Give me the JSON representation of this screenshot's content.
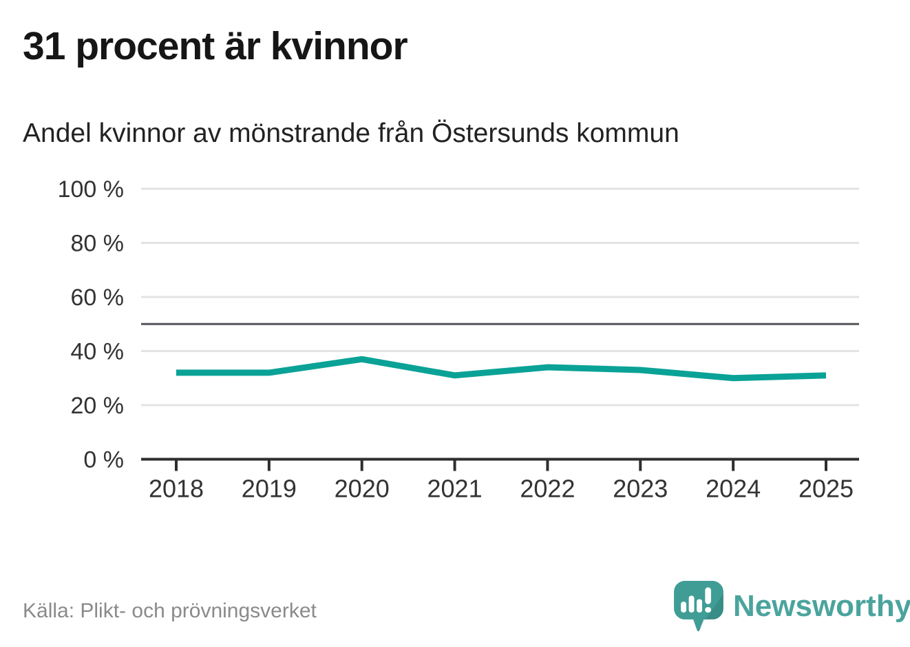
{
  "header": {
    "title": "31 procent är kvinnor",
    "subtitle": "Andel kvinnor av mönstrande från Östersunds kommun"
  },
  "footer": {
    "source": "Källa: Plikt- och prövningsverket",
    "brand": "Newsworthy"
  },
  "colors": {
    "line": "#0aa296",
    "gridline": "#e3e3e3",
    "reference_line": "#55555a",
    "axis": "#2e2e2e",
    "tick_label": "#333333",
    "title_text": "#161616",
    "source_text": "#8a8a8a",
    "brand_teal": "#4aa49d",
    "logo_teal": "#3f9d96"
  },
  "chart_data": {
    "type": "line",
    "title": "31 procent är kvinnor",
    "subtitle": "Andel kvinnor av mönstrande från Östersunds kommun",
    "x": [
      "2018",
      "2019",
      "2020",
      "2021",
      "2022",
      "2023",
      "2024",
      "2025"
    ],
    "series": [
      {
        "name": "Andel kvinnor av mönstrande",
        "values": [
          32,
          32,
          37,
          31,
          34,
          33,
          30,
          31
        ]
      }
    ],
    "unit": "%",
    "ylim": [
      0,
      100
    ],
    "yticks": [
      0,
      20,
      40,
      60,
      80,
      100
    ],
    "ytick_labels": [
      "0 %",
      "20 %",
      "40 %",
      "60 %",
      "80 %",
      "100 %"
    ],
    "reference_line": 50,
    "grid": true,
    "legend": false,
    "source": "Källa: Plikt- och prövningsverket"
  }
}
